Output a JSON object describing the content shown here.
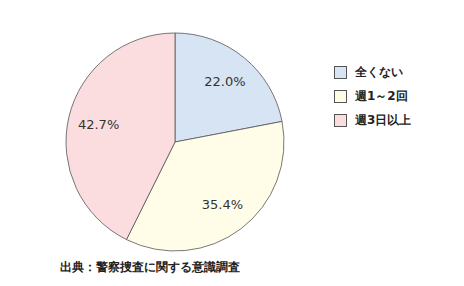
{
  "chart_data": {
    "type": "pie",
    "categories": [
      "全くない",
      "週1～2回",
      "週3日以上"
    ],
    "values": [
      22.0,
      35.4,
      42.7
    ],
    "value_labels": [
      "22.0%",
      "35.4%",
      "42.7%"
    ],
    "colors": [
      "#d7e4f3",
      "#fffde8",
      "#fbdde0"
    ],
    "data_labels": true,
    "legend": "right",
    "annotations": [
      "出典：警察捜査に関する意識調査"
    ]
  }
}
